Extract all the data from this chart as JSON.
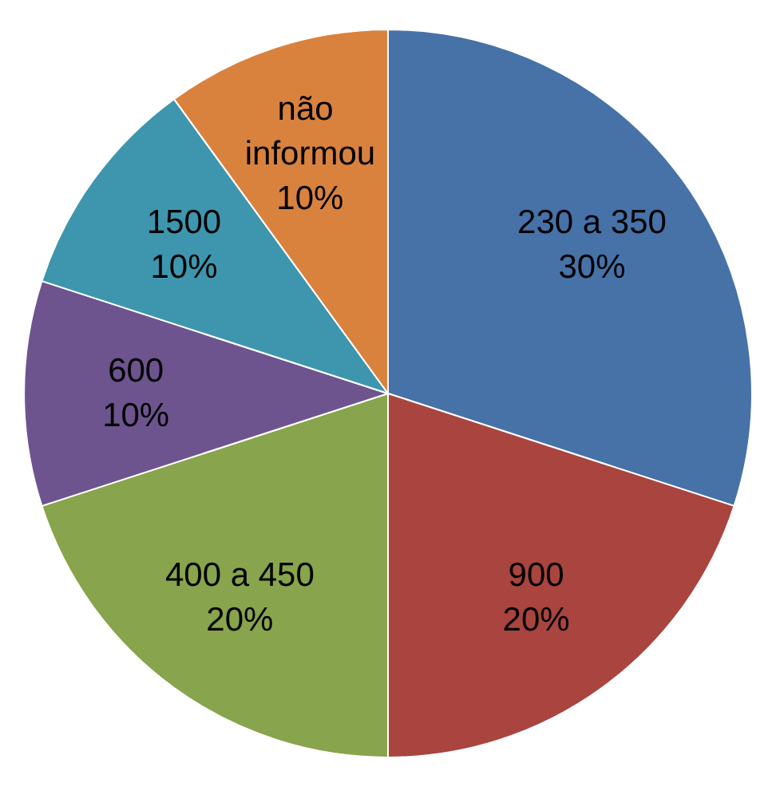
{
  "chart_data": {
    "type": "pie",
    "categories": [
      "230 a 350",
      "900",
      "400 a 450",
      "600",
      "1500",
      "não informou"
    ],
    "values": [
      30,
      20,
      20,
      10,
      10,
      10
    ],
    "colors": [
      "#4672a8",
      "#a9443f",
      "#88a44c",
      "#6e548e",
      "#3e96ae",
      "#d9823e"
    ],
    "value_labels": [
      "30%",
      "20%",
      "20%",
      "10%",
      "10%",
      "10%"
    ],
    "legend": false
  }
}
